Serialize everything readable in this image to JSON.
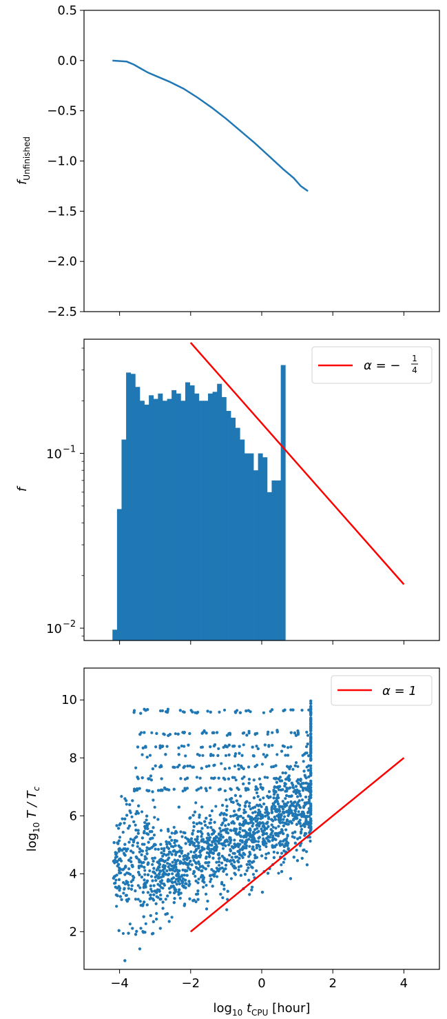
{
  "chart_data": [
    {
      "type": "line",
      "ylabel_main": "f",
      "ylabel_sub": "Unfinished",
      "xlim": [
        -5,
        5
      ],
      "ylim": [
        -2.5,
        0.5
      ],
      "yticks": [
        0.5,
        0.0,
        -0.5,
        -1.0,
        -1.5,
        -2.0,
        -2.5
      ],
      "ytick_labels": [
        "0.5",
        "0.0",
        "−0.5",
        "−1.0",
        "−1.5",
        "−2.0",
        "−2.5"
      ],
      "xticks": [
        -4,
        -2,
        0,
        2,
        4
      ],
      "series": [
        {
          "color": "#1f77b4",
          "x": [
            -4.2,
            -3.8,
            -3.6,
            -3.4,
            -3.2,
            -3.0,
            -2.6,
            -2.2,
            -1.8,
            -1.4,
            -1.0,
            -0.6,
            -0.2,
            0.2,
            0.6,
            0.9,
            1.1,
            1.3
          ],
          "y": [
            0.0,
            -0.01,
            -0.04,
            -0.08,
            -0.12,
            -0.15,
            -0.21,
            -0.28,
            -0.37,
            -0.47,
            -0.58,
            -0.7,
            -0.82,
            -0.95,
            -1.08,
            -1.17,
            -1.25,
            -1.3
          ]
        }
      ]
    },
    {
      "type": "bar",
      "ylabel": "f",
      "yscale": "log",
      "xlim": [
        -5,
        5
      ],
      "ylim": [
        0.0085,
        0.45
      ],
      "ytick_labels": [
        {
          "value": 0.1,
          "base": "10",
          "exp": "−1"
        },
        {
          "value": 0.01,
          "base": "10",
          "exp": "−2"
        }
      ],
      "xticks": [
        -4,
        -2,
        0,
        2,
        4
      ],
      "bar_color": "#1f77b4",
      "bin_width": 0.128,
      "bin_start": -4.2,
      "values": [
        0.0098,
        0.048,
        0.12,
        0.29,
        0.285,
        0.24,
        0.2,
        0.19,
        0.215,
        0.205,
        0.22,
        0.2,
        0.205,
        0.23,
        0.22,
        0.2,
        0.255,
        0.245,
        0.22,
        0.2,
        0.2,
        0.22,
        0.225,
        0.25,
        0.21,
        0.175,
        0.16,
        0.14,
        0.12,
        0.1,
        0.1,
        0.08,
        0.1,
        0.095,
        0.06,
        0.07,
        0.07,
        0.32
      ],
      "reference_line": {
        "color": "#ff0000",
        "x": [
          -2.0,
          4.0
        ],
        "y": [
          0.43,
          0.0178
        ],
        "legend_label": "α = −",
        "legend_frac_num": "1",
        "legend_frac_den": "4"
      }
    },
    {
      "type": "scatter",
      "ylabel_main": "log",
      "ylabel_sub": "10",
      "ylabel_rest": " T / T",
      "ylabel_rest_sub": "c",
      "xlabel_main": "log",
      "xlabel_sub": "10",
      "xlabel_t": " t",
      "xlabel_t_sub": "CPU",
      "xlabel_unit": " [hour]",
      "xlim": [
        -5,
        5
      ],
      "ylim": [
        0.7,
        11.1
      ],
      "yticks": [
        2,
        4,
        6,
        8,
        10
      ],
      "ytick_labels": [
        "2",
        "4",
        "6",
        "8",
        "10"
      ],
      "xticks": [
        -4,
        -2,
        0,
        2,
        4
      ],
      "xtick_labels": [
        "−4",
        "−2",
        "0",
        "2",
        "4"
      ],
      "point_color": "#1f77b4",
      "point_count": 3000,
      "point_x_range": [
        -4.2,
        1.4
      ],
      "point_y_range": [
        1.0,
        10.6
      ],
      "reference_line": {
        "color": "#ff0000",
        "x": [
          -2.0,
          4.0
        ],
        "y": [
          2.0,
          8.0
        ],
        "legend_label": "α = 1"
      }
    }
  ]
}
